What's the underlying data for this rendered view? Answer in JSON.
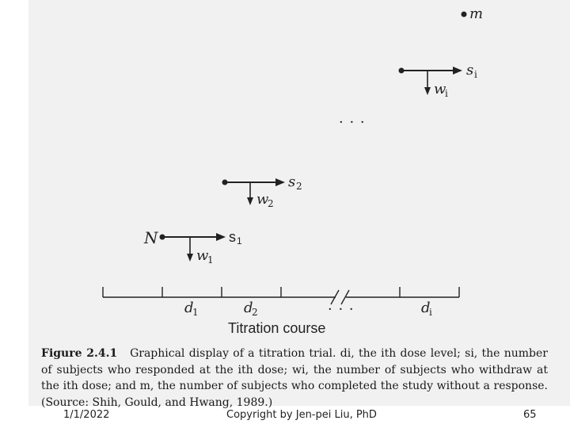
{
  "diagram": {
    "points": {
      "m": "m",
      "N": "N"
    },
    "stages": [
      {
        "s": "s",
        "s_sub": "1",
        "w": "w",
        "w_sub": "1"
      },
      {
        "s": "s",
        "s_sub": "2",
        "w": "w",
        "w_sub": "2"
      },
      {
        "s": "s",
        "s_sub": "i",
        "w": "w",
        "w_sub": "i"
      }
    ],
    "middle_ellipsis": "· · ·",
    "axis": {
      "ticks": [
        {
          "d": "d",
          "sub": "1"
        },
        {
          "d": "d",
          "sub": "2"
        },
        {
          "d": "· · ·",
          "sub": ""
        },
        {
          "d": "d",
          "sub": "i"
        }
      ],
      "title": "Titration course"
    }
  },
  "caption": {
    "label": "Figure 2.4.1",
    "text": "Graphical display of a titration trial. di, the ith dose level; si, the number of subjects who responded at the ith dose; wi, the number of subjects who withdraw at the ith dose; and m, the number of subjects who completed the study without a response. (Source: Shih, Gould, and Hwang, 1989.)"
  },
  "footer": {
    "date": "1/1/2022",
    "copyright": "Copyright by Jen-pei Liu, PhD",
    "page": "65"
  }
}
